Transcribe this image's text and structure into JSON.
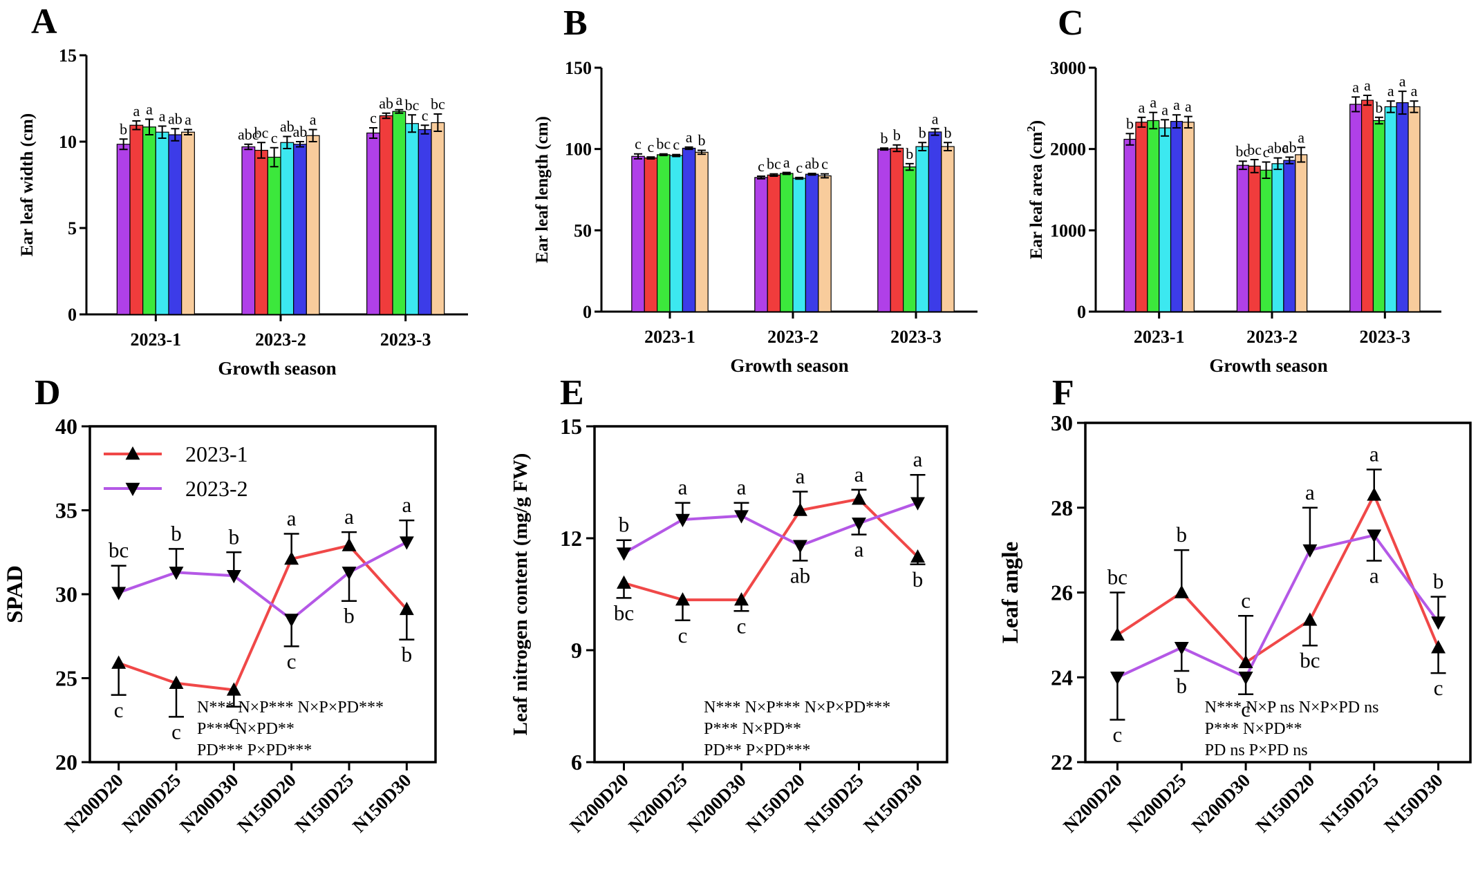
{
  "colors": {
    "bars": [
      "#b040e8",
      "#f03c3c",
      "#3ce83c",
      "#3ce8f0",
      "#3c3ce8",
      "#f8cc9c"
    ],
    "line1": "#f04848",
    "line2": "#b458e6",
    "marker": "#000000"
  },
  "chart_data": [
    {
      "type": "bar",
      "panel": "A",
      "title": "",
      "xlabel": "Growth season",
      "ylabel": "Ear leaf width (cm)",
      "categories": [
        "2023-1",
        "2023-2",
        "2023-3"
      ],
      "ylim": [
        0,
        15
      ],
      "yticks": [
        0,
        5,
        10,
        15
      ],
      "series": [
        {
          "values": [
            9.85,
            9.7,
            10.5
          ],
          "errors": [
            0.3,
            0.15,
            0.3
          ],
          "letters": [
            "b",
            "abc",
            "c"
          ]
        },
        {
          "values": [
            10.95,
            9.5,
            11.5
          ],
          "errors": [
            0.25,
            0.45,
            0.15
          ],
          "letters": [
            "a",
            "bc",
            "ab"
          ]
        },
        {
          "values": [
            10.85,
            9.1,
            11.75
          ],
          "errors": [
            0.45,
            0.55,
            0.1
          ],
          "letters": [
            "a",
            "c",
            "a"
          ]
        },
        {
          "values": [
            10.55,
            9.95,
            11.05
          ],
          "errors": [
            0.35,
            0.35,
            0.5
          ],
          "letters": [
            "a",
            "ab",
            "bc"
          ]
        },
        {
          "values": [
            10.4,
            9.85,
            10.7
          ],
          "errors": [
            0.35,
            0.15,
            0.25
          ],
          "letters": [
            "ab",
            "ab",
            "c"
          ]
        },
        {
          "values": [
            10.55,
            10.35,
            11.1
          ],
          "errors": [
            0.15,
            0.35,
            0.5
          ],
          "letters": [
            "a",
            "a",
            "bc"
          ]
        }
      ]
    },
    {
      "type": "bar",
      "panel": "B",
      "title": "",
      "xlabel": "Growth season",
      "ylabel": "Ear leaf length (cm)",
      "categories": [
        "2023-1",
        "2023-2",
        "2023-3"
      ],
      "ylim": [
        0,
        150
      ],
      "yticks": [
        0,
        50,
        100,
        150
      ],
      "series": [
        {
          "values": [
            95.5,
            82.5,
            100
          ],
          "errors": [
            1.5,
            0.8,
            0.6
          ],
          "letters": [
            "c",
            "c",
            "b"
          ]
        },
        {
          "values": [
            94.5,
            84,
            100.5
          ],
          "errors": [
            0.6,
            0.7,
            2
          ],
          "letters": [
            "c",
            "bc",
            "b"
          ]
        },
        {
          "values": [
            96.5,
            85,
            89
          ],
          "errors": [
            0.5,
            0.6,
            2
          ],
          "letters": [
            "bc",
            "a",
            "b"
          ]
        },
        {
          "values": [
            96,
            82,
            101.5
          ],
          "errors": [
            0.6,
            0.5,
            2.5
          ],
          "letters": [
            "c",
            "c",
            "b"
          ]
        },
        {
          "values": [
            100.5,
            84.5,
            110.5
          ],
          "errors": [
            0.7,
            0.5,
            2
          ],
          "letters": [
            "a",
            "ab",
            "a"
          ]
        },
        {
          "values": [
            98,
            83.5,
            101.5
          ],
          "errors": [
            1.2,
            1.2,
            2.5
          ],
          "letters": [
            "b",
            "c",
            "b"
          ]
        }
      ]
    },
    {
      "type": "bar",
      "panel": "C",
      "title": "",
      "xlabel": "Growth season",
      "ylabel": "Ear leaf area (cm2)",
      "ylabel_base": "Ear leaf area (cm",
      "ylabel_sup": "2",
      "ylabel_end": ")",
      "categories": [
        "2023-1",
        "2023-2",
        "2023-3"
      ],
      "ylim": [
        0,
        3000
      ],
      "yticks": [
        0,
        1000,
        2000,
        3000
      ],
      "series": [
        {
          "values": [
            2120,
            1800,
            2550
          ],
          "errors": [
            70,
            50,
            90
          ],
          "letters": [
            "b",
            "bc",
            "a"
          ]
        },
        {
          "values": [
            2330,
            1790,
            2600
          ],
          "errors": [
            60,
            80,
            60
          ],
          "letters": [
            "a",
            "bc",
            "a"
          ]
        },
        {
          "values": [
            2350,
            1740,
            2350
          ],
          "errors": [
            100,
            100,
            40
          ],
          "letters": [
            "a",
            "c",
            "b"
          ]
        },
        {
          "values": [
            2260,
            1820,
            2520
          ],
          "errors": [
            100,
            70,
            70
          ],
          "letters": [
            "a",
            "abc",
            "a"
          ]
        },
        {
          "values": [
            2340,
            1860,
            2570
          ],
          "errors": [
            80,
            40,
            140
          ],
          "letters": [
            "a",
            "ab",
            "a"
          ]
        },
        {
          "values": [
            2330,
            1930,
            2520
          ],
          "errors": [
            70,
            90,
            70
          ],
          "letters": [
            "a",
            "a",
            "a"
          ]
        }
      ]
    },
    {
      "type": "line",
      "panel": "D",
      "title": "",
      "xlabel": "",
      "ylabel": "SPAD",
      "categories": [
        "N200D20",
        "N200D25",
        "N200D30",
        "N150D20",
        "N150D25",
        "N150D30"
      ],
      "ylim": [
        20,
        40
      ],
      "yticks": [
        20,
        25,
        30,
        35,
        40
      ],
      "legend": true,
      "series": [
        {
          "name": "2023-1",
          "values": [
            25.9,
            24.7,
            24.3,
            32.1,
            32.9,
            29.1
          ],
          "errors": [
            1.9,
            2.0,
            1.0,
            1.5,
            0.8,
            1.8
          ],
          "letters": [
            "c",
            "c",
            "c",
            "a",
            "a",
            "b"
          ]
        },
        {
          "name": "2023-2",
          "values": [
            30.1,
            31.3,
            31.1,
            28.5,
            31.3,
            33.1
          ],
          "errors": [
            1.6,
            1.4,
            1.4,
            1.6,
            1.7,
            1.3
          ],
          "letters": [
            "bc",
            "b",
            "b",
            "c",
            "b",
            "a"
          ]
        }
      ],
      "stats": [
        "N***   N×P*** N×P×PD***",
        "P***   N×PD**",
        "PD*** P×PD***"
      ]
    },
    {
      "type": "line",
      "panel": "E",
      "title": "",
      "xlabel": "",
      "ylabel": "Leaf nitrogen content (mg/g FW)",
      "categories": [
        "N200D20",
        "N200D25",
        "N200D30",
        "N150D20",
        "N150D25",
        "N150D30"
      ],
      "ylim": [
        6,
        15
      ],
      "yticks": [
        6,
        9,
        12,
        15
      ],
      "series": [
        {
          "name": "2023-1",
          "values": [
            10.8,
            10.35,
            10.35,
            12.75,
            13.05,
            11.5
          ],
          "errors": [
            0.4,
            0.55,
            0.3,
            0.5,
            0.25,
            0.2
          ],
          "letters": [
            "bc",
            "c",
            "c",
            "a",
            "a",
            "b"
          ]
        },
        {
          "name": "2023-2",
          "values": [
            11.6,
            12.5,
            12.6,
            11.8,
            12.4,
            12.95
          ],
          "errors": [
            0.35,
            0.45,
            0.35,
            0.4,
            0.3,
            0.75
          ],
          "letters": [
            "b",
            "a",
            "a",
            "ab",
            "a",
            "a"
          ]
        }
      ],
      "stats": [
        "N***   N×P*** N×P×PD***",
        "P***   N×PD**",
        "PD** P×PD***"
      ]
    },
    {
      "type": "line",
      "panel": "F",
      "title": "",
      "xlabel": "",
      "ylabel": "Leaf angle",
      "categories": [
        "N200D20",
        "N200D25",
        "N200D30",
        "N150D20",
        "N150D25",
        "N150D30"
      ],
      "ylim": [
        22,
        30
      ],
      "yticks": [
        22,
        24,
        26,
        28,
        30
      ],
      "series": [
        {
          "name": "2023-1",
          "values": [
            25,
            26,
            24.35,
            25.35,
            28.3,
            24.7
          ],
          "errors": [
            1.0,
            1.0,
            1.1,
            0.6,
            0.6,
            0.6
          ],
          "letters": [
            "bc",
            "b",
            "c",
            "bc",
            "a",
            "c"
          ]
        },
        {
          "name": "2023-2",
          "values": [
            24,
            24.7,
            24,
            27,
            27.35,
            25.3
          ],
          "errors": [
            1.0,
            0.55,
            0.4,
            1.0,
            0.6,
            0.6
          ],
          "letters": [
            "c",
            "b",
            "c",
            "a",
            "a",
            "b"
          ]
        }
      ],
      "stats": [
        "N***   N×P ns N×P×PD ns",
        "P***   N×PD**",
        "PD ns P×PD ns"
      ]
    }
  ]
}
